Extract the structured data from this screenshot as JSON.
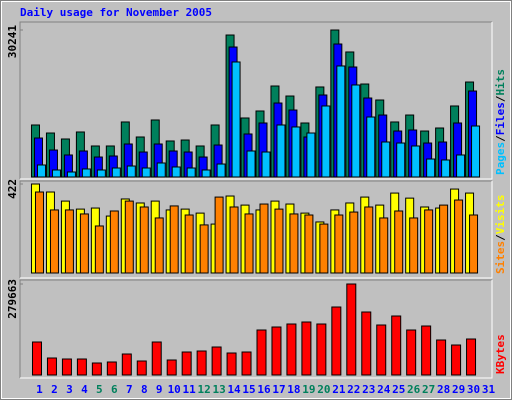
{
  "title": "Daily usage for November 2005",
  "legend_separator": "/",
  "chart_data": [
    {
      "type": "bar",
      "ylim": [
        0,
        30241
      ],
      "yticks": [
        30241
      ],
      "series": [
        {
          "name": "Hits",
          "color": "#00805c",
          "values": [
            10700,
            9050,
            7820,
            9260,
            6380,
            6380,
            11320,
            8230,
            11730,
            7410,
            7610,
            6380,
            10700,
            29210,
            12140,
            13580,
            18720,
            16660,
            11110,
            18520,
            30241,
            25720,
            19130,
            15840,
            11320,
            12750,
            9460,
            10080,
            14610,
            19540,
            null
          ]
        },
        {
          "name": "Files",
          "color": "#0000ff",
          "values": [
            8020,
            5550,
            4530,
            5350,
            4110,
            4320,
            6790,
            5140,
            6790,
            5350,
            5140,
            4110,
            6580,
            26740,
            8850,
            11110,
            15220,
            13780,
            8230,
            16870,
            27360,
            22630,
            16250,
            12750,
            9460,
            9670,
            6990,
            7200,
            11110,
            17690,
            null
          ]
        },
        {
          "name": "Pages",
          "color": "#00c0ff",
          "values": [
            2470,
            1440,
            1030,
            1650,
            1440,
            1850,
            2260,
            1850,
            2880,
            2060,
            1850,
            1440,
            2670,
            23660,
            5350,
            5140,
            10700,
            10290,
            9050,
            14610,
            22840,
            18930,
            12340,
            7200,
            6990,
            6380,
            3700,
            3500,
            4530,
            10490,
            null
          ]
        }
      ]
    },
    {
      "type": "bar",
      "ylim": [
        0,
        422
      ],
      "yticks": [
        422
      ],
      "series": [
        {
          "name": "Visits",
          "color": "#ffff00",
          "values": [
            422,
            384,
            341,
            303,
            308,
            270,
            351,
            332,
            341,
            299,
            303,
            284,
            232,
            365,
            322,
            299,
            341,
            327,
            284,
            242,
            299,
            332,
            360,
            322,
            379,
            355,
            313,
            308,
            398,
            379,
            null
          ]
        },
        {
          "name": "Sites",
          "color": "#ff8000",
          "values": [
            384,
            299,
            299,
            280,
            223,
            294,
            341,
            313,
            261,
            318,
            275,
            228,
            360,
            313,
            280,
            327,
            303,
            280,
            275,
            232,
            275,
            289,
            313,
            261,
            294,
            261,
            299,
            322,
            346,
            275,
            null
          ]
        }
      ]
    },
    {
      "type": "bar",
      "ylim": [
        0,
        279663
      ],
      "yticks": [
        279663
      ],
      "categories": [
        "1",
        "2",
        "3",
        "4",
        "5",
        "6",
        "7",
        "8",
        "9",
        "10",
        "11",
        "12",
        "13",
        "14",
        "15",
        "16",
        "17",
        "18",
        "19",
        "20",
        "21",
        "22",
        "23",
        "24",
        "25",
        "26",
        "27",
        "28",
        "29",
        "30",
        "31"
      ],
      "category_colors": [
        "#0000ff",
        "#0000ff",
        "#0000ff",
        "#0000ff",
        "#00805c",
        "#00805c",
        "#0000ff",
        "#0000ff",
        "#0000ff",
        "#0000ff",
        "#0000ff",
        "#00805c",
        "#00805c",
        "#0000ff",
        "#0000ff",
        "#0000ff",
        "#0000ff",
        "#0000ff",
        "#00805c",
        "#00805c",
        "#0000ff",
        "#0000ff",
        "#0000ff",
        "#0000ff",
        "#0000ff",
        "#00805c",
        "#00805c",
        "#0000ff",
        "#0000ff",
        "#0000ff",
        "#0000ff"
      ],
      "series": [
        {
          "name": "KBytes",
          "color": "#ff0000",
          "values": [
            101420,
            52250,
            49170,
            49170,
            36880,
            39950,
            64540,
            43030,
            101420,
            46100,
            70690,
            73760,
            86050,
            67610,
            70690,
            138290,
            147520,
            156730,
            162880,
            156730,
            208980,
            279663,
            193610,
            153660,
            181320,
            138290,
            150590,
            107560,
            92190,
            110640,
            null
          ]
        }
      ]
    }
  ]
}
